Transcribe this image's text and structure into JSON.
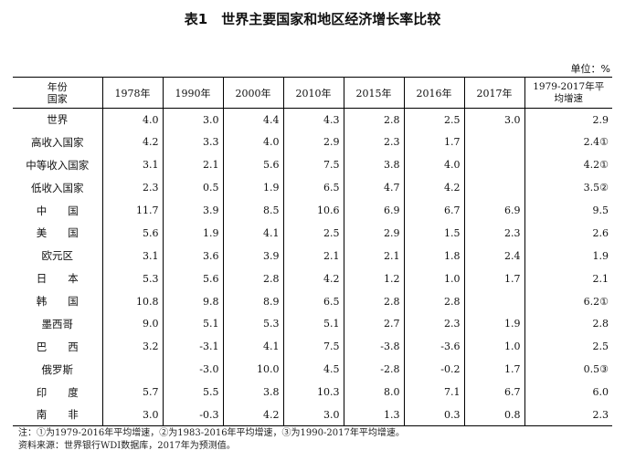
{
  "title": "表1　世界主要国家和地区经济增长率比较",
  "unit": "单位：%",
  "header": {
    "corner_top": "年份",
    "corner_bottom": "国家",
    "years": [
      "1978年",
      "1990年",
      "2000年",
      "2010年",
      "2015年",
      "2016年",
      "2017年"
    ],
    "avg_line1": "1979-2017年平",
    "avg_line2": "均增速"
  },
  "rows": [
    {
      "name": "世界",
      "v": [
        "4.0",
        "3.0",
        "4.4",
        "4.3",
        "2.8",
        "2.5",
        "3.0",
        "2.9"
      ]
    },
    {
      "name": "高收入国家",
      "v": [
        "4.2",
        "3.3",
        "4.0",
        "2.9",
        "2.3",
        "1.7",
        "",
        "2.4①"
      ]
    },
    {
      "name": "中等收入国家",
      "v": [
        "3.1",
        "2.1",
        "5.6",
        "7.5",
        "3.8",
        "4.0",
        "",
        "4.2①"
      ]
    },
    {
      "name": "低收入国家",
      "v": [
        "2.3",
        "0.5",
        "1.9",
        "6.5",
        "4.7",
        "4.2",
        "",
        "3.5②"
      ]
    },
    {
      "name": "中　　国",
      "v": [
        "11.7",
        "3.9",
        "8.5",
        "10.6",
        "6.9",
        "6.7",
        "6.9",
        "9.5"
      ]
    },
    {
      "name": "美　　国",
      "v": [
        "5.6",
        "1.9",
        "4.1",
        "2.5",
        "2.9",
        "1.5",
        "2.3",
        "2.6"
      ]
    },
    {
      "name": "欧元区",
      "v": [
        "3.1",
        "3.6",
        "3.9",
        "2.1",
        "2.1",
        "1.8",
        "2.4",
        "1.9"
      ]
    },
    {
      "name": "日　　本",
      "v": [
        "5.3",
        "5.6",
        "2.8",
        "4.2",
        "1.2",
        "1.0",
        "1.7",
        "2.1"
      ]
    },
    {
      "name": "韩　　国",
      "v": [
        "10.8",
        "9.8",
        "8.9",
        "6.5",
        "2.8",
        "2.8",
        "",
        "6.2①"
      ]
    },
    {
      "name": "墨西哥",
      "v": [
        "9.0",
        "5.1",
        "5.3",
        "5.1",
        "2.7",
        "2.3",
        "1.9",
        "2.8"
      ]
    },
    {
      "name": "巴　　西",
      "v": [
        "3.2",
        "-3.1",
        "4.1",
        "7.5",
        "-3.8",
        "-3.6",
        "1.0",
        "2.5"
      ]
    },
    {
      "name": "俄罗斯",
      "v": [
        "",
        "-3.0",
        "10.0",
        "4.5",
        "-2.8",
        "-0.2",
        "1.7",
        "0.5③"
      ]
    },
    {
      "name": "印　　度",
      "v": [
        "5.7",
        "5.5",
        "3.8",
        "10.3",
        "8.0",
        "7.1",
        "6.7",
        "6.0"
      ]
    },
    {
      "name": "南　　非",
      "v": [
        "3.0",
        "-0.3",
        "4.2",
        "3.0",
        "1.3",
        "0.3",
        "0.8",
        "2.3"
      ]
    }
  ],
  "notes": {
    "line1": "注：①为1979-2016年平均增速，②为1983-2016年平均增速，③为1990-2017年平均增速。",
    "line2": "资料来源：世界银行WDI数据库，2017年为预测值。"
  }
}
